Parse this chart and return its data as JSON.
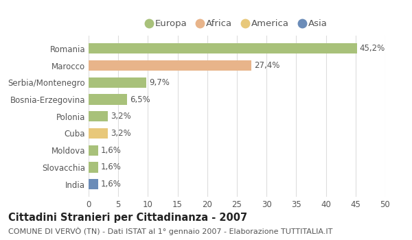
{
  "categories": [
    "Romania",
    "Marocco",
    "Serbia/Montenegro",
    "Bosnia-Erzegovina",
    "Polonia",
    "Cuba",
    "Moldova",
    "Slovacchia",
    "India"
  ],
  "values": [
    45.2,
    27.4,
    9.7,
    6.5,
    3.2,
    3.2,
    1.6,
    1.6,
    1.6
  ],
  "labels": [
    "45,2%",
    "27,4%",
    "9,7%",
    "6,5%",
    "3,2%",
    "3,2%",
    "1,6%",
    "1,6%",
    "1,6%"
  ],
  "colors": [
    "#a8c17a",
    "#e8b48a",
    "#a8c17a",
    "#a8c17a",
    "#a8c17a",
    "#e8c87a",
    "#a8c17a",
    "#a8c17a",
    "#6b8cb8"
  ],
  "legend": [
    {
      "label": "Europa",
      "color": "#a8c17a"
    },
    {
      "label": "Africa",
      "color": "#e8b48a"
    },
    {
      "label": "America",
      "color": "#e8c87a"
    },
    {
      "label": "Asia",
      "color": "#6b8cb8"
    }
  ],
  "xlim": [
    0,
    50
  ],
  "xticks": [
    0,
    5,
    10,
    15,
    20,
    25,
    30,
    35,
    40,
    45,
    50
  ],
  "title": "Cittadini Stranieri per Cittadinanza - 2007",
  "subtitle": "COMUNE DI VERVÒ (TN) - Dati ISTAT al 1° gennaio 2007 - Elaborazione TUTTITALIA.IT",
  "background_color": "#ffffff",
  "grid_color": "#dddddd",
  "bar_height": 0.62,
  "label_fontsize": 8.5,
  "tick_fontsize": 8.5,
  "title_fontsize": 10.5,
  "subtitle_fontsize": 8,
  "legend_fontsize": 9.5
}
